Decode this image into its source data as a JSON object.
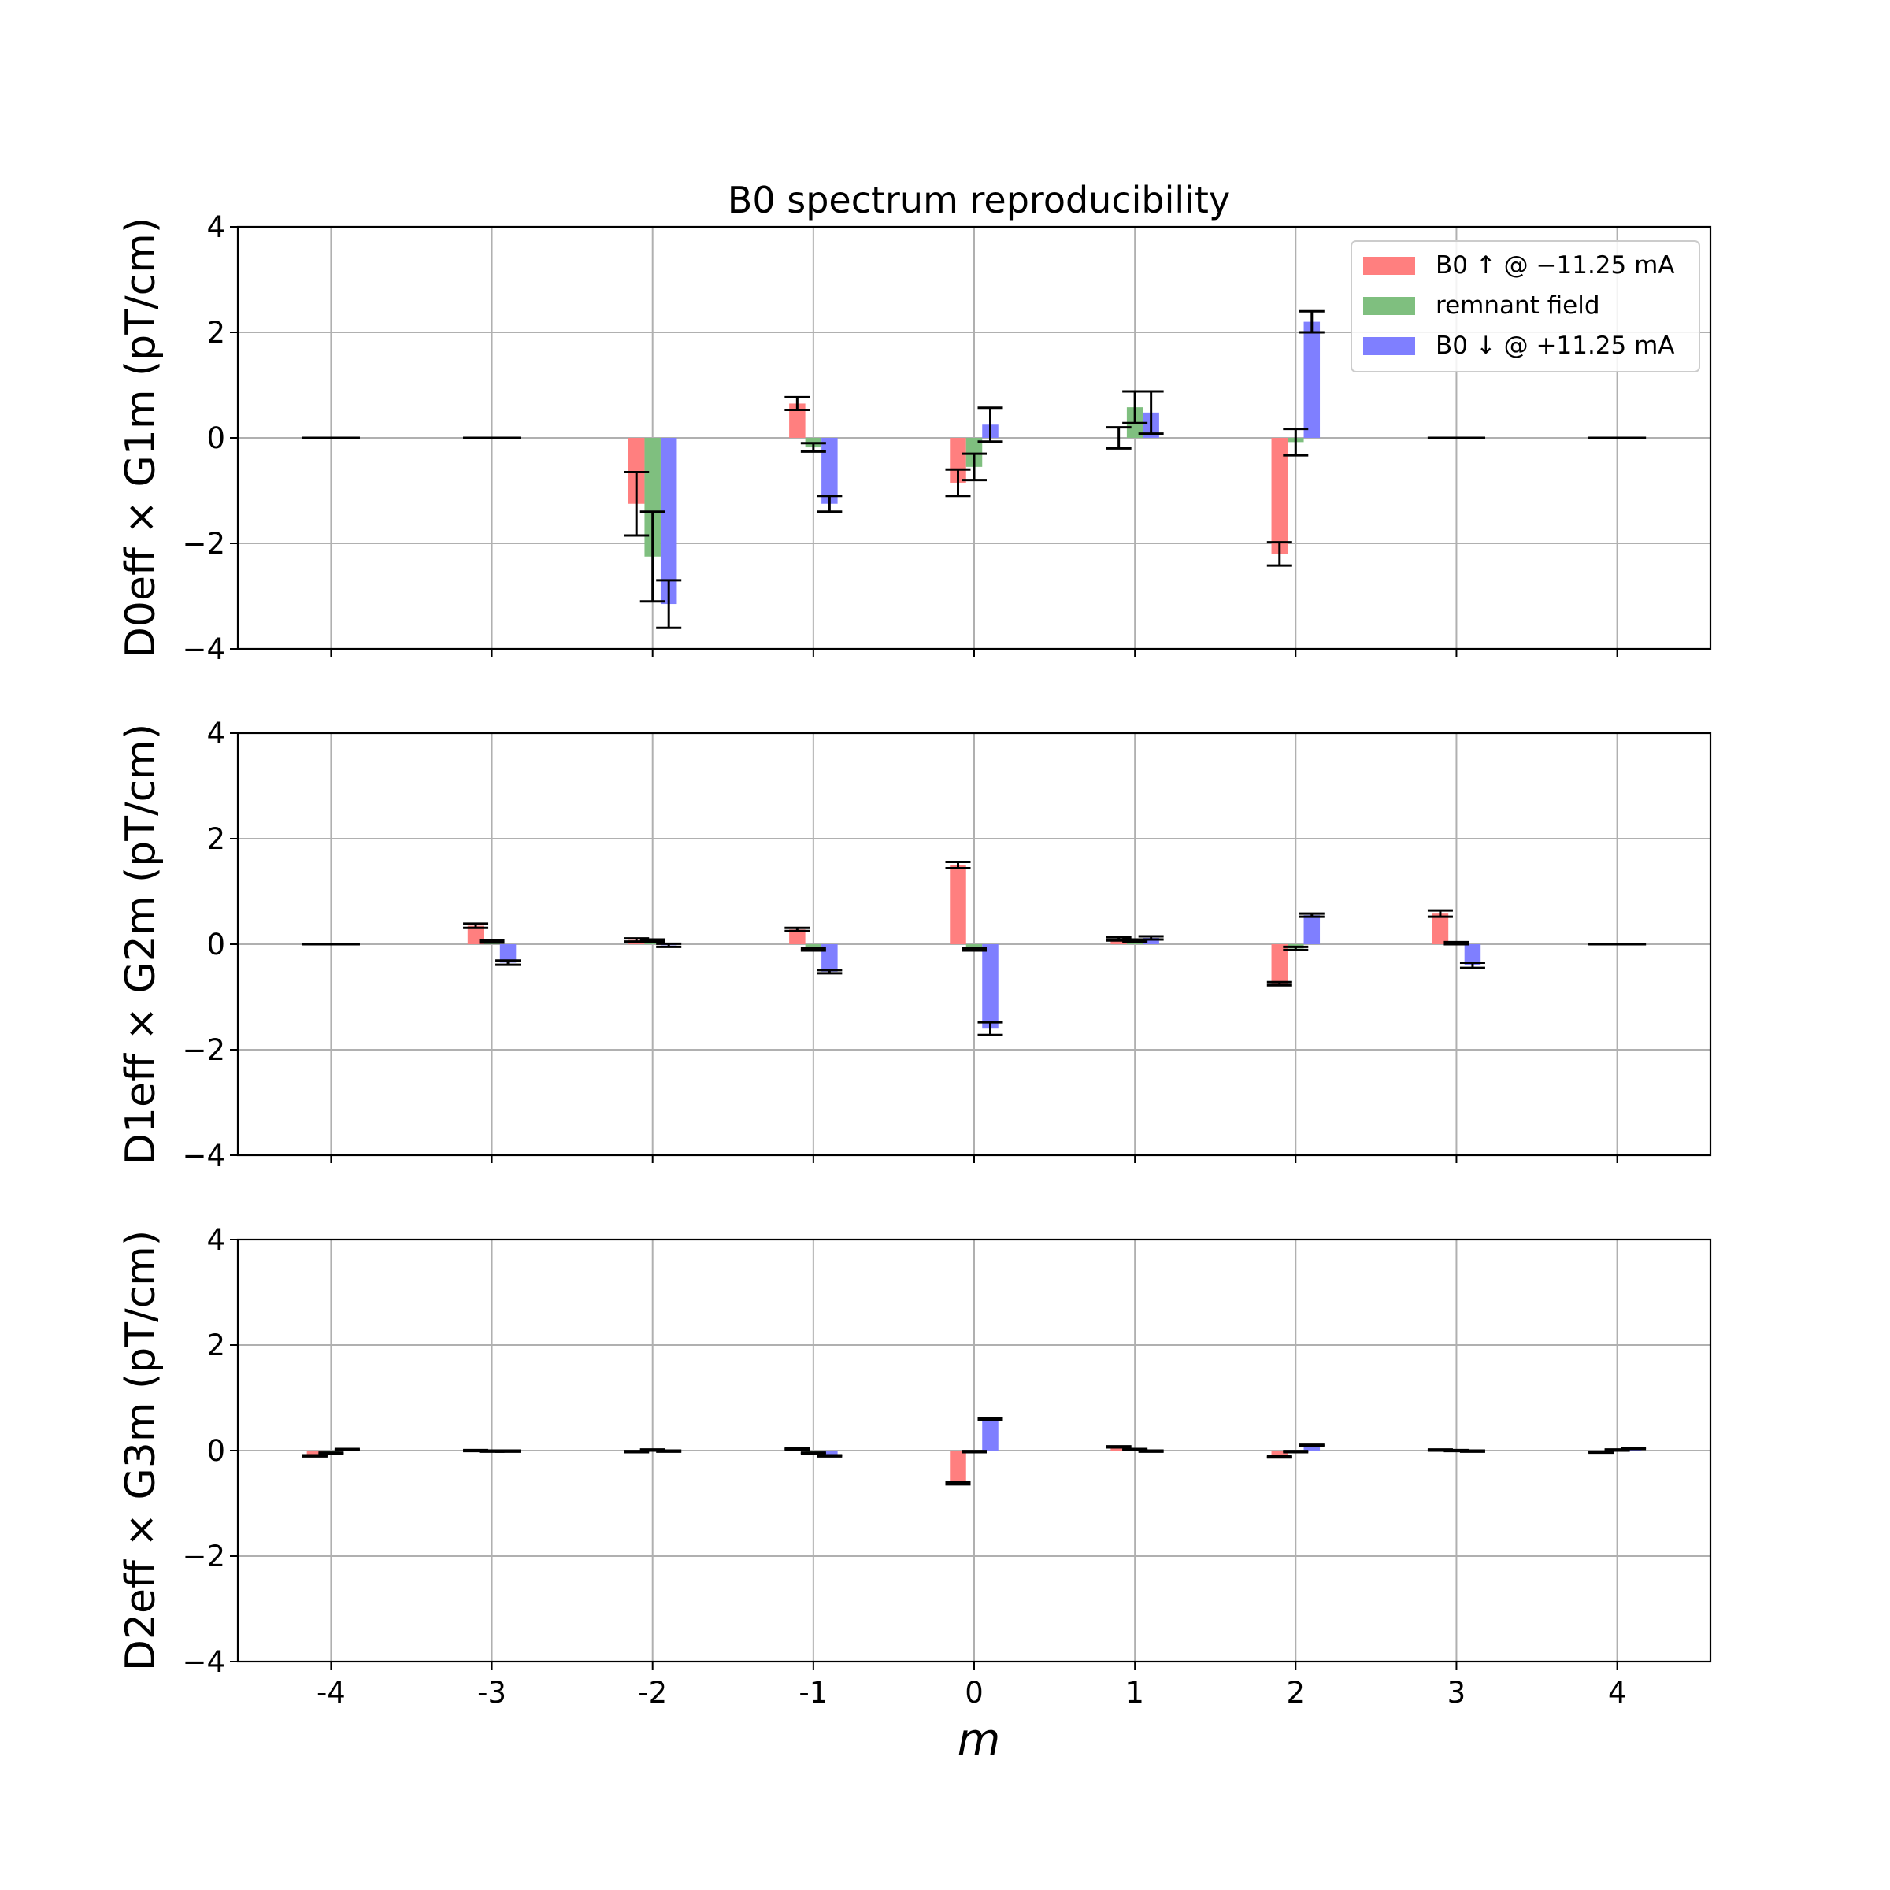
{
  "chart_data": {
    "type": "bar",
    "title": "B0 spectrum reproducibility",
    "xlabel": "m",
    "x": [
      -4,
      -3,
      -2,
      -1,
      0,
      1,
      2,
      3,
      4
    ],
    "x_tick_labels": [
      "-4",
      "-3",
      "-2",
      "-1",
      "0",
      "1",
      "2",
      "3",
      "4"
    ],
    "ylim": [
      -4,
      4
    ],
    "y_ticks": [
      -4,
      -2,
      0,
      2,
      4
    ],
    "y_tick_labels": [
      "−4",
      "−2",
      "0",
      "2",
      "4"
    ],
    "grid": true,
    "legend_position": "top-right",
    "legend": [
      {
        "label": "B0 ↑ @ −11.25 mA",
        "color": "#ff7f7f"
      },
      {
        "label": "remnant field",
        "color": "#7fbf7f"
      },
      {
        "label": "B0 ↓ @ +11.25 mA",
        "color": "#7f7fff"
      }
    ],
    "panels": [
      {
        "ylabel": "D0eff × G1m (pT/cm)",
        "series": [
          {
            "name": "B0 ↑ @ −11.25 mA",
            "color": "#ff7f7f",
            "values": [
              0,
              0,
              -1.25,
              0.65,
              -0.85,
              0,
              -2.2,
              0,
              0
            ],
            "errors": [
              0,
              0,
              0.6,
              0.12,
              0.25,
              0.2,
              0.22,
              0,
              0
            ]
          },
          {
            "name": "remnant field",
            "color": "#7fbf7f",
            "values": [
              0,
              0,
              -2.25,
              -0.18,
              -0.55,
              0.58,
              -0.08,
              0,
              0
            ],
            "errors": [
              0,
              0,
              0.85,
              0.08,
              0.25,
              0.3,
              0.25,
              0,
              0
            ]
          },
          {
            "name": "B0 ↓ @ +11.25 mA",
            "color": "#7f7fff",
            "values": [
              0,
              0,
              -3.15,
              -1.25,
              0.25,
              0.48,
              2.2,
              0,
              0
            ],
            "errors": [
              0,
              0,
              0.45,
              0.15,
              0.32,
              0.4,
              0.2,
              0,
              0
            ]
          }
        ]
      },
      {
        "ylabel": "D1eff × G2m (pT/cm)",
        "series": [
          {
            "name": "B0 ↑ @ −11.25 mA",
            "color": "#ff7f7f",
            "values": [
              0,
              0.35,
              0.08,
              0.28,
              1.5,
              0.1,
              -0.75,
              0.58,
              0
            ],
            "errors": [
              0,
              0.04,
              0.03,
              0.03,
              0.06,
              0.03,
              0.03,
              0.06,
              0
            ]
          },
          {
            "name": "remnant field",
            "color": "#7fbf7f",
            "values": [
              0,
              0.05,
              0.07,
              -0.1,
              -0.1,
              0.07,
              -0.08,
              0.02,
              0
            ],
            "errors": [
              0,
              0.02,
              0.02,
              0.02,
              0.02,
              0.02,
              0.03,
              0.02,
              0
            ]
          },
          {
            "name": "B0 ↓ @ +11.25 mA",
            "color": "#7f7fff",
            "values": [
              0,
              -0.35,
              -0.02,
              -0.52,
              -1.6,
              0.12,
              0.55,
              -0.4,
              0
            ],
            "errors": [
              0,
              0.04,
              0.03,
              0.03,
              0.12,
              0.03,
              0.03,
              0.05,
              0
            ]
          }
        ]
      },
      {
        "ylabel": "D2eff × G3m (pT/cm)",
        "series": [
          {
            "name": "B0 ↑ @ −11.25 mA",
            "color": "#ff7f7f",
            "values": [
              -0.1,
              0,
              -0.02,
              0.03,
              -0.62,
              0.07,
              -0.12,
              0.01,
              -0.03
            ],
            "errors": [
              0.01,
              0.01,
              0.01,
              0.01,
              0.02,
              0.01,
              0.01,
              0.01,
              0.01
            ]
          },
          {
            "name": "remnant field",
            "color": "#7fbf7f",
            "values": [
              -0.05,
              -0.01,
              0.01,
              -0.05,
              -0.02,
              0.02,
              -0.02,
              0,
              0.01
            ],
            "errors": [
              0.01,
              0.01,
              0.01,
              0.01,
              0.01,
              0.01,
              0.01,
              0.01,
              0.01
            ]
          },
          {
            "name": "B0 ↓ @ +11.25 mA",
            "color": "#7f7fff",
            "values": [
              0.02,
              -0.01,
              -0.01,
              -0.1,
              0.6,
              -0.01,
              0.1,
              -0.01,
              0.04
            ],
            "errors": [
              0.01,
              0.01,
              0.01,
              0.01,
              0.02,
              0.01,
              0.01,
              0.01,
              0.01
            ]
          }
        ]
      }
    ]
  }
}
